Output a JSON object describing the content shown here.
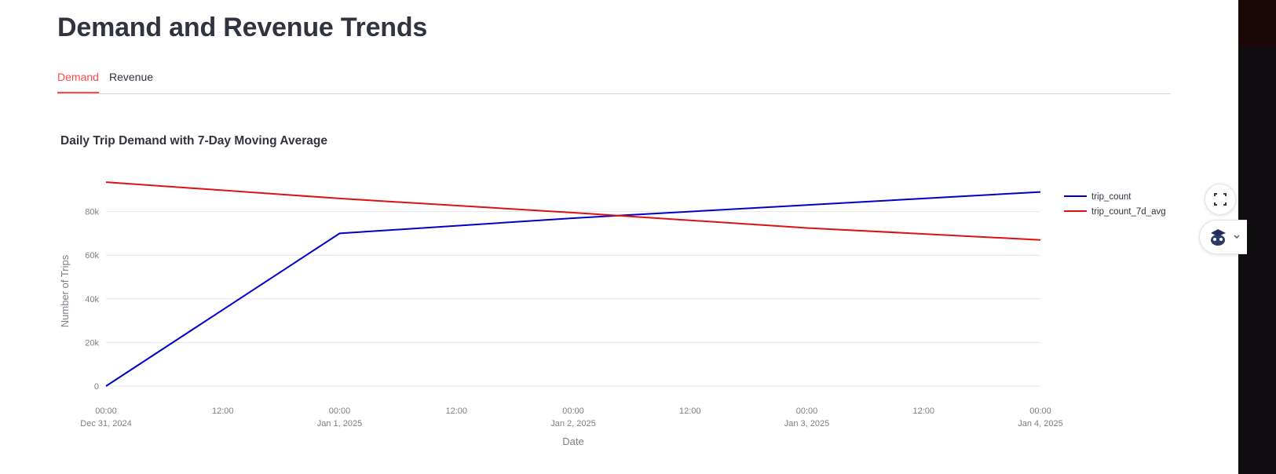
{
  "page": {
    "title": "Demand and Revenue Trends"
  },
  "tabs": [
    {
      "label": "Demand",
      "active": true
    },
    {
      "label": "Revenue",
      "active": false
    }
  ],
  "icons": {
    "screenshot": "screenshot-icon",
    "avatar": "avatar-icon",
    "chevron": "chevron-down-icon"
  },
  "colors": {
    "accent": "#ff4b4b",
    "trip_count": "#0000cd",
    "trip_count_7d_avg": "#dd1111",
    "grid": "#e6e6e6",
    "text": "#31333f"
  },
  "chart_data": {
    "type": "line",
    "title": "Daily Trip Demand with 7-Day Moving Average",
    "xlabel": "Date",
    "ylabel": "Number of Trips",
    "x": [
      "2024-12-31",
      "2025-01-01",
      "2025-01-02",
      "2025-01-03",
      "2025-01-04"
    ],
    "series": [
      {
        "name": "trip_count",
        "values": [
          0,
          70000,
          77000,
          83000,
          89000
        ]
      },
      {
        "name": "trip_count_7d_avg",
        "values": [
          93500,
          86000,
          79500,
          72500,
          67000
        ]
      }
    ],
    "ylim": [
      0,
      100000
    ],
    "yticks": [
      {
        "value": 0,
        "label": "0"
      },
      {
        "value": 20000,
        "label": "20k"
      },
      {
        "value": 40000,
        "label": "40k"
      },
      {
        "value": 60000,
        "label": "60k"
      },
      {
        "value": 80000,
        "label": "80k"
      }
    ],
    "xticks": [
      {
        "day": 0,
        "time": "00:00",
        "date": "Dec 31, 2024"
      },
      {
        "day": 0.5,
        "time": "12:00",
        "date": ""
      },
      {
        "day": 1,
        "time": "00:00",
        "date": "Jan 1, 2025"
      },
      {
        "day": 1.5,
        "time": "12:00",
        "date": ""
      },
      {
        "day": 2,
        "time": "00:00",
        "date": "Jan 2, 2025"
      },
      {
        "day": 2.5,
        "time": "12:00",
        "date": ""
      },
      {
        "day": 3,
        "time": "00:00",
        "date": "Jan 3, 2025"
      },
      {
        "day": 3.5,
        "time": "12:00",
        "date": ""
      },
      {
        "day": 4,
        "time": "00:00",
        "date": "Jan 4, 2025"
      }
    ],
    "grid": true,
    "legend_position": "top-right"
  }
}
